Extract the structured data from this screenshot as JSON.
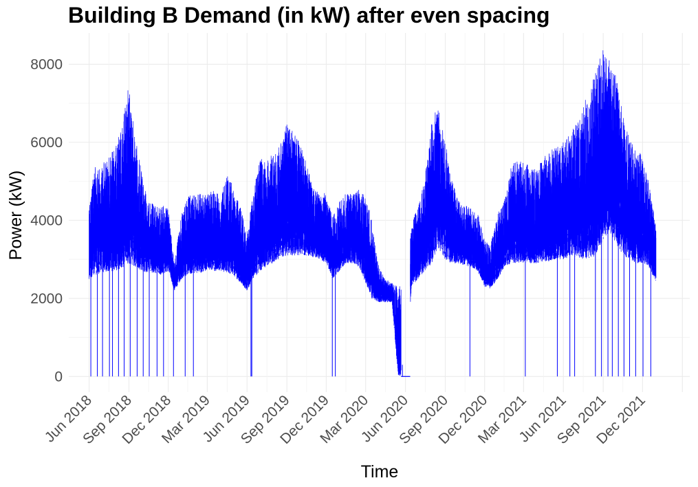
{
  "chart_data": {
    "type": "line",
    "title": "Building B Demand (in kW) after even spacing",
    "xlabel": "Time",
    "ylabel": "Power (kW)",
    "y_ticks": [
      0,
      2000,
      4000,
      6000,
      8000
    ],
    "y_tick_labels": [
      "0",
      "2000",
      "4000",
      "6000",
      "8000"
    ],
    "x_ticks": [
      "2018-06-01",
      "2018-09-01",
      "2018-12-01",
      "2019-03-01",
      "2019-06-01",
      "2019-09-01",
      "2019-12-01",
      "2020-03-01",
      "2020-06-01",
      "2020-09-01",
      "2020-12-01",
      "2021-03-01",
      "2021-06-01",
      "2021-09-01",
      "2021-12-01"
    ],
    "x_tick_labels": [
      "Jun 2018",
      "Sep 2018",
      "Dec 2018",
      "Mar 2019",
      "Jun 2019",
      "Sep 2019",
      "Dec 2019",
      "Mar 2020",
      "Jun 2020",
      "Sep 2020",
      "Dec 2020",
      "Mar 2021",
      "Jun 2021",
      "Sep 2021",
      "Dec 2021"
    ],
    "xlim": [
      "2018-04-15",
      "2022-03-20"
    ],
    "ylim": [
      -400,
      8800
    ],
    "grid": true,
    "legend": "none",
    "line_color": "#0000ff",
    "series": [
      {
        "x": [
          "2018-06-01",
          "2018-06-15",
          "2018-07-01",
          "2018-07-15",
          "2018-08-01",
          "2018-08-15",
          "2018-09-01",
          "2018-09-15",
          "2018-10-01",
          "2018-10-15",
          "2018-11-01",
          "2018-11-15",
          "2018-12-01",
          "2018-12-15",
          "2019-01-01",
          "2019-01-15",
          "2019-02-01",
          "2019-02-15",
          "2019-03-01",
          "2019-03-15",
          "2019-04-01",
          "2019-04-15",
          "2019-05-01",
          "2019-05-15",
          "2019-06-01",
          "2019-06-15",
          "2019-07-01",
          "2019-07-15",
          "2019-08-01",
          "2019-08-15",
          "2019-09-01",
          "2019-09-15",
          "2019-10-01",
          "2019-10-15",
          "2019-11-01",
          "2019-11-15",
          "2019-12-01",
          "2019-12-15",
          "2020-01-01",
          "2020-01-15",
          "2020-02-01",
          "2020-02-15",
          "2020-03-01",
          "2020-03-15",
          "2020-04-01",
          "2020-04-15",
          "2020-05-01",
          "2020-05-15",
          "2020-06-01",
          "2020-06-15",
          "2020-07-01",
          "2020-07-15",
          "2020-08-01",
          "2020-08-15",
          "2020-09-01",
          "2020-09-15",
          "2020-10-01",
          "2020-10-15",
          "2020-11-01",
          "2020-11-15",
          "2020-12-01",
          "2020-12-15",
          "2021-01-01",
          "2021-01-15",
          "2021-02-01",
          "2021-02-15",
          "2021-03-01",
          "2021-03-15",
          "2021-04-01",
          "2021-04-15",
          "2021-05-01",
          "2021-05-15",
          "2021-06-01",
          "2021-06-15",
          "2021-07-01",
          "2021-07-15",
          "2021-08-01",
          "2021-08-15",
          "2021-09-01",
          "2021-09-15",
          "2021-10-01",
          "2021-10-15",
          "2021-11-01",
          "2021-11-15",
          "2021-12-01",
          "2021-12-15",
          "2022-01-01"
        ],
        "min": [
          2500,
          2600,
          2650,
          2700,
          2700,
          2750,
          2900,
          2800,
          2700,
          2650,
          2650,
          2600,
          2700,
          2200,
          2500,
          2600,
          2650,
          2650,
          2700,
          2700,
          2700,
          2650,
          2600,
          2400,
          2200,
          2500,
          2700,
          2800,
          2900,
          3000,
          3100,
          3100,
          3100,
          3100,
          3050,
          3000,
          2900,
          2500,
          2700,
          2900,
          2900,
          2800,
          2400,
          2000,
          1900,
          1900,
          1900,
          0,
          0,
          2300,
          2500,
          2700,
          2900,
          3300,
          3000,
          2900,
          2900,
          2850,
          2800,
          2700,
          2300,
          2250,
          2500,
          2800,
          2900,
          2900,
          2900,
          2900,
          2900,
          2950,
          2950,
          3000,
          3000,
          3050,
          3050,
          3000,
          3000,
          3100,
          3500,
          3700,
          3400,
          3100,
          3000,
          2900,
          2900,
          2800,
          2400
        ],
        "max": [
          4500,
          5400,
          5400,
          5700,
          5900,
          6400,
          7600,
          6200,
          5200,
          4500,
          4400,
          4400,
          4300,
          2900,
          4200,
          4600,
          4700,
          4700,
          4700,
          4800,
          4600,
          5200,
          4900,
          4400,
          3700,
          4700,
          5600,
          5500,
          5800,
          5900,
          6500,
          6300,
          6000,
          5500,
          4900,
          4700,
          4700,
          4100,
          4500,
          4700,
          4700,
          4800,
          4700,
          4000,
          2800,
          2500,
          2400,
          2300,
          2500,
          3900,
          4400,
          5000,
          6600,
          6900,
          6000,
          5200,
          4500,
          4400,
          4300,
          4200,
          3500,
          3400,
          4200,
          4500,
          5400,
          5600,
          5500,
          5400,
          5300,
          5600,
          5800,
          5900,
          6000,
          6200,
          6500,
          6800,
          7600,
          7800,
          8400,
          8100,
          7700,
          6800,
          6100,
          5800,
          5700,
          5000,
          3900
        ]
      }
    ],
    "dropouts": [
      "2018-06-05",
      "2018-06-20",
      "2018-07-02",
      "2018-07-18",
      "2018-07-25",
      "2018-08-08",
      "2018-08-21",
      "2018-09-04",
      "2018-09-20",
      "2018-10-04",
      "2018-10-18",
      "2018-11-05",
      "2018-11-20",
      "2018-12-13",
      "2019-01-09",
      "2019-01-28",
      "2019-06-10",
      "2019-06-12",
      "2019-12-15",
      "2019-12-22",
      "2020-05-25",
      "2020-10-28",
      "2021-03-05",
      "2021-05-18",
      "2021-06-16",
      "2021-06-27",
      "2021-08-14",
      "2021-08-28",
      "2021-09-12",
      "2021-09-22",
      "2021-10-06",
      "2021-10-19",
      "2021-11-01",
      "2021-11-15",
      "2021-12-02",
      "2021-12-20"
    ],
    "zero_span": [
      "2020-05-22",
      "2020-06-12"
    ]
  }
}
